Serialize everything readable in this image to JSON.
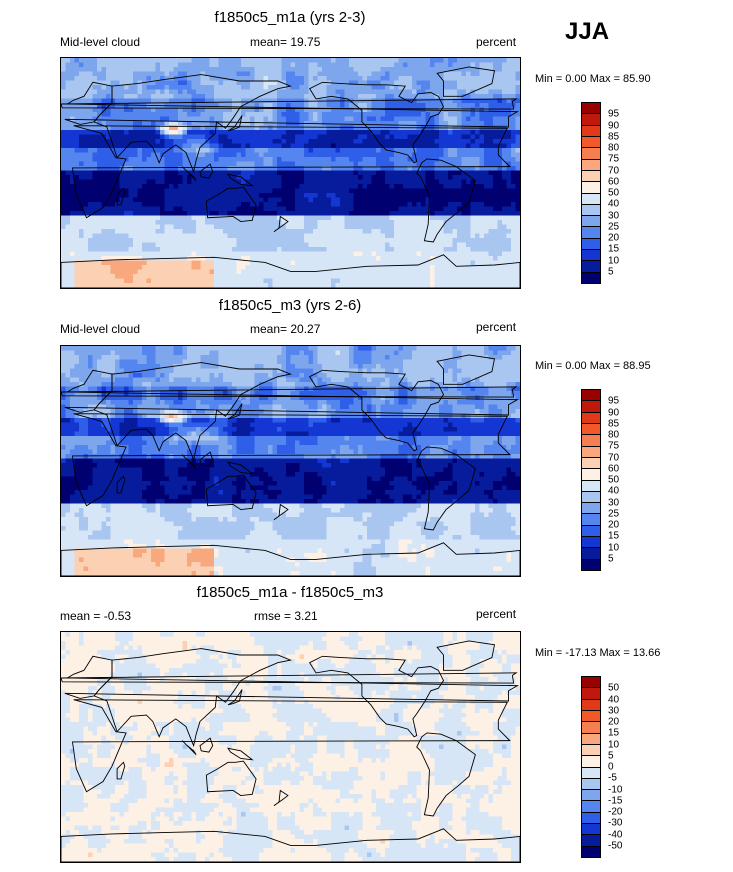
{
  "season": "JJA",
  "panels": [
    {
      "title": "f1850c5_m1a (yrs 2-3)",
      "left_label": "Mid-level cloud",
      "center_label": "mean=  19.75",
      "right_label": "percent",
      "minmax": "Min =   0.00 Max =  85.90",
      "field_kind": "cloud",
      "seed": 1,
      "colorbar": {
        "labels": [
          "95",
          "90",
          "85",
          "80",
          "75",
          "70",
          "60",
          "50",
          "40",
          "30",
          "25",
          "20",
          "15",
          "10",
          "5"
        ],
        "colors": [
          "#990000",
          "#c0180c",
          "#e03a18",
          "#f2582a",
          "#f57f50",
          "#f9a77c",
          "#fcd0b2",
          "#fdf0e4",
          "#d6e6f7",
          "#a9c6f0",
          "#7ea6ec",
          "#5585ee",
          "#2f5ee8",
          "#1436d2",
          "#061c9c",
          "#000070"
        ]
      }
    },
    {
      "title": "f1850c5_m3 (yrs 2-6)",
      "left_label": "Mid-level cloud",
      "center_label": "mean=  20.27",
      "right_label": "percent",
      "minmax": "Min =   0.00 Max =  88.95",
      "field_kind": "cloud",
      "seed": 2,
      "colorbar": {
        "labels": [
          "95",
          "90",
          "85",
          "80",
          "75",
          "70",
          "60",
          "50",
          "40",
          "30",
          "25",
          "20",
          "15",
          "10",
          "5"
        ],
        "colors": [
          "#990000",
          "#c0180c",
          "#e03a18",
          "#f2582a",
          "#f57f50",
          "#f9a77c",
          "#fcd0b2",
          "#fdf0e4",
          "#d6e6f7",
          "#a9c6f0",
          "#7ea6ec",
          "#5585ee",
          "#2f5ee8",
          "#1436d2",
          "#061c9c",
          "#000070"
        ]
      }
    },
    {
      "title": "f1850c5_m1a - f1850c5_m3",
      "left_label": "mean =  -0.53",
      "center_label": "rmse =   3.21",
      "right_label": "percent",
      "minmax": "Min = -17.13 Max =  13.66",
      "field_kind": "diff",
      "seed": 3,
      "colorbar": {
        "labels": [
          "50",
          "40",
          "30",
          "20",
          "15",
          "10",
          "5",
          "0",
          "-5",
          "-10",
          "-15",
          "-20",
          "-30",
          "-40",
          "-50"
        ],
        "colors": [
          "#990000",
          "#c0180c",
          "#e03a18",
          "#f2582a",
          "#f57f50",
          "#f9a77c",
          "#fcd0b2",
          "#fdf0e4",
          "#d6e6f7",
          "#a9c6f0",
          "#7ea6ec",
          "#5585ee",
          "#2f5ee8",
          "#1436d2",
          "#061c9c",
          "#000070"
        ]
      }
    }
  ]
}
